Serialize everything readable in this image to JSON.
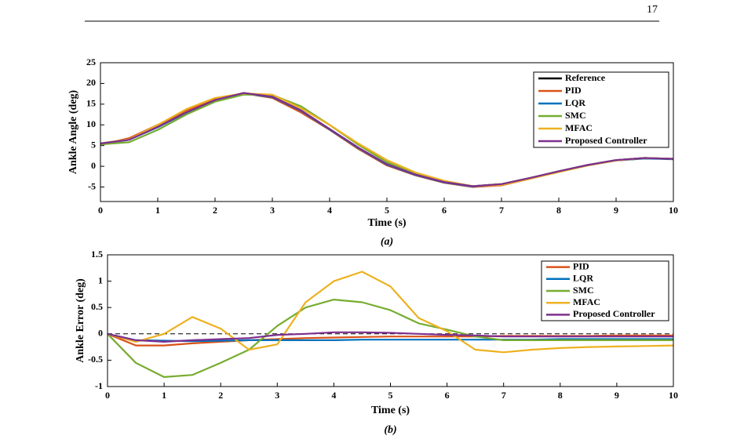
{
  "page_number": "17",
  "chart_data": [
    {
      "type": "line",
      "caption": "(a)",
      "xlabel": "Time (s)",
      "ylabel": "Ankle Angle (deg)",
      "x": [
        0,
        0.5,
        1,
        1.5,
        2,
        2.5,
        3,
        3.5,
        4,
        4.5,
        5,
        5.5,
        6,
        6.5,
        7,
        7.5,
        8,
        8.5,
        9,
        9.5,
        10
      ],
      "xlim": [
        0,
        10
      ],
      "xticks": [
        0,
        1,
        2,
        3,
        4,
        5,
        6,
        7,
        8,
        9,
        10
      ],
      "ylim": [
        -8.5,
        25
      ],
      "yticks": [
        -5,
        0,
        5,
        10,
        15,
        20,
        25
      ],
      "legend": "upper right",
      "series": [
        {
          "name": "Reference",
          "color": "#000000",
          "values": [
            5.5,
            6.5,
            9.5,
            13,
            16,
            17.7,
            16.8,
            13.5,
            9,
            4.5,
            0.5,
            -2,
            -3.8,
            -4.8,
            -4.3,
            -2.8,
            -1.2,
            0.3,
            1.5,
            2,
            1.8
          ]
        },
        {
          "name": "PID",
          "color": "#d95319",
          "values": [
            5.2,
            6.8,
            10,
            13.5,
            16.3,
            17.6,
            16.5,
            13,
            8.8,
            4.2,
            0.2,
            -2.2,
            -4,
            -5,
            -4.6,
            -3,
            -1.3,
            0.2,
            1.4,
            1.9,
            1.8
          ]
        },
        {
          "name": "LQR",
          "color": "#0072bd",
          "values": [
            5.4,
            6.4,
            9.4,
            12.9,
            15.9,
            17.6,
            16.7,
            13.4,
            8.9,
            4.4,
            0.4,
            -2.1,
            -3.9,
            -4.9,
            -4.4,
            -2.9,
            -1.3,
            0.2,
            1.4,
            1.9,
            1.7
          ]
        },
        {
          "name": "SMC",
          "color": "#77ac30",
          "values": [
            5.3,
            5.8,
            8.8,
            12.5,
            15.6,
            17.3,
            17.2,
            14.5,
            10,
            5.2,
            1,
            -1.8,
            -3.7,
            -4.8,
            -4.3,
            -2.8,
            -1.2,
            0.3,
            1.5,
            2,
            1.8
          ]
        },
        {
          "name": "MFAC",
          "color": "#edb120",
          "values": [
            5.5,
            6.5,
            10,
            13.8,
            16.5,
            17.6,
            17.3,
            14,
            10,
            5.5,
            1.5,
            -1.5,
            -3.5,
            -4.8,
            -4.5,
            -3,
            -1.4,
            0.2,
            1.4,
            2,
            1.8
          ]
        },
        {
          "name": "Proposed Controller",
          "color": "#7e2f8e",
          "values": [
            5.5,
            6.4,
            9.5,
            13,
            16,
            17.7,
            16.8,
            13.5,
            9,
            4.5,
            0.5,
            -2,
            -3.8,
            -4.8,
            -4.3,
            -2.8,
            -1.2,
            0.3,
            1.5,
            2,
            1.8
          ]
        }
      ]
    },
    {
      "type": "line",
      "caption": "(b)",
      "xlabel": "Time (s)",
      "ylabel": "Ankle Error (deg)",
      "x": [
        0,
        0.5,
        1,
        1.5,
        2,
        2.5,
        3,
        3.5,
        4,
        4.5,
        5,
        5.5,
        6,
        6.5,
        7,
        7.5,
        8,
        8.5,
        9,
        9.5,
        10
      ],
      "xlim": [
        0,
        10
      ],
      "xticks": [
        0,
        1,
        2,
        3,
        4,
        5,
        6,
        7,
        8,
        9,
        10
      ],
      "ylim": [
        -1,
        1.5
      ],
      "yticks": [
        -1,
        -0.5,
        0,
        0.5,
        1,
        1.5
      ],
      "hline": 0,
      "legend": "upper right",
      "series": [
        {
          "name": "PID",
          "color": "#d95319",
          "values": [
            0,
            -0.22,
            -0.22,
            -0.18,
            -0.15,
            -0.12,
            -0.1,
            -0.08,
            -0.07,
            -0.06,
            -0.05,
            -0.05,
            -0.05,
            -0.05,
            -0.04,
            -0.04,
            -0.04,
            -0.04,
            -0.03,
            -0.03,
            -0.03
          ]
        },
        {
          "name": "LQR",
          "color": "#0072bd",
          "values": [
            0,
            -0.12,
            -0.13,
            -0.14,
            -0.13,
            -0.12,
            -0.12,
            -0.12,
            -0.12,
            -0.11,
            -0.11,
            -0.11,
            -0.11,
            -0.11,
            -0.11,
            -0.11,
            -0.1,
            -0.1,
            -0.1,
            -0.1,
            -0.1
          ]
        },
        {
          "name": "SMC",
          "color": "#77ac30",
          "values": [
            0,
            -0.55,
            -0.82,
            -0.78,
            -0.55,
            -0.3,
            0.15,
            0.5,
            0.65,
            0.6,
            0.45,
            0.2,
            0.08,
            -0.05,
            -0.12,
            -0.12,
            -0.12,
            -0.12,
            -0.12,
            -0.12,
            -0.12
          ]
        },
        {
          "name": "MFAC",
          "color": "#edb120",
          "values": [
            0,
            -0.15,
            0,
            0.32,
            0.1,
            -0.3,
            -0.2,
            0.6,
            1,
            1.18,
            0.9,
            0.3,
            0.05,
            -0.3,
            -0.35,
            -0.3,
            -0.27,
            -0.25,
            -0.24,
            -0.23,
            -0.22
          ]
        },
        {
          "name": "Proposed Controller",
          "color": "#7e2f8e",
          "values": [
            0,
            -0.12,
            -0.15,
            -0.12,
            -0.1,
            -0.08,
            -0.02,
            0,
            0.03,
            0.03,
            0.02,
            0,
            -0.02,
            -0.03,
            -0.05,
            -0.05,
            -0.05,
            -0.05,
            -0.05,
            -0.05,
            -0.05
          ]
        }
      ]
    }
  ]
}
